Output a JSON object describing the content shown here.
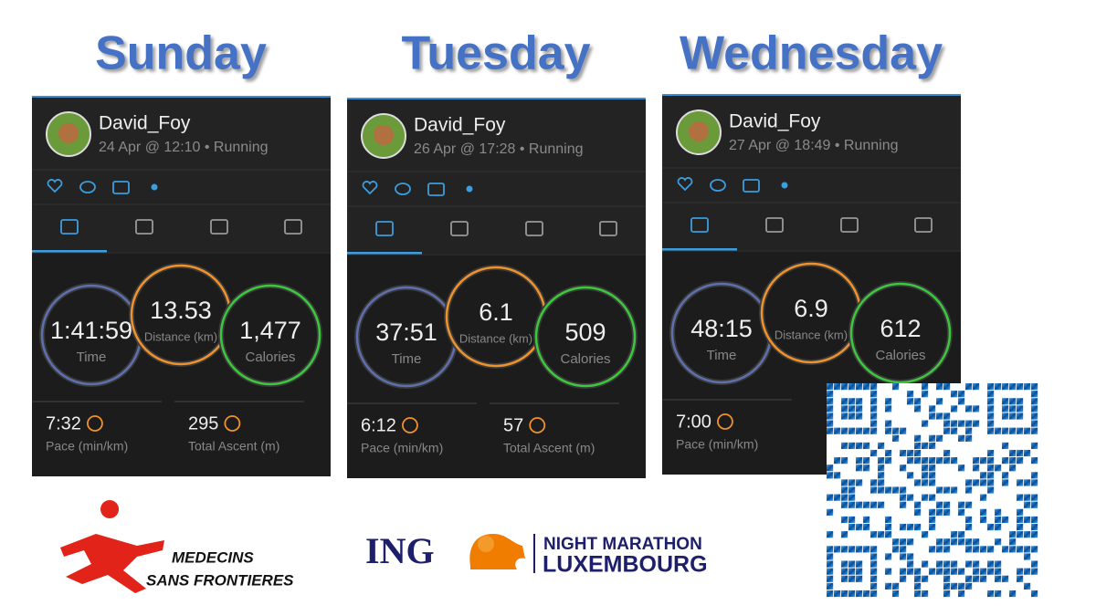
{
  "panels": [
    {
      "day": "Sunday",
      "user": "David_Foy",
      "meta": "24 Apr @ 12:10 • Running",
      "time": "1:41:59",
      "time_label": "Time",
      "distance": "13.53",
      "distance_label": "Distance (km)",
      "calories": "1,477",
      "calories_label": "Calories",
      "pace": "7:32",
      "pace_label": "Pace (min/km)",
      "ascent": "295",
      "ascent_label": "Total Ascent (m)"
    },
    {
      "day": "Tuesday",
      "user": "David_Foy",
      "meta": "26 Apr @ 17:28 • Running",
      "time": "37:51",
      "time_label": "Time",
      "distance": "6.1",
      "distance_label": "Distance (km)",
      "calories": "509",
      "calories_label": "Calories",
      "pace": "6:12",
      "pace_label": "Pace (min/km)",
      "ascent": "57",
      "ascent_label": "Total Ascent (m)"
    },
    {
      "day": "Wednesday",
      "user": "David_Foy",
      "meta": "27 Apr @ 18:49 • Running",
      "time": "48:15",
      "time_label": "Time",
      "distance": "6.9",
      "distance_label": "Distance (km)",
      "calories": "612",
      "calories_label": "Calories",
      "pace": "7:00",
      "pace_label": "Pace (min/km)"
    }
  ],
  "logos": {
    "msf": [
      "MEDECINS",
      "SANS FRONTIERES"
    ],
    "ing": "ING",
    "event": [
      "NIGHT MARATHON",
      "LUXEMBOURG"
    ]
  }
}
